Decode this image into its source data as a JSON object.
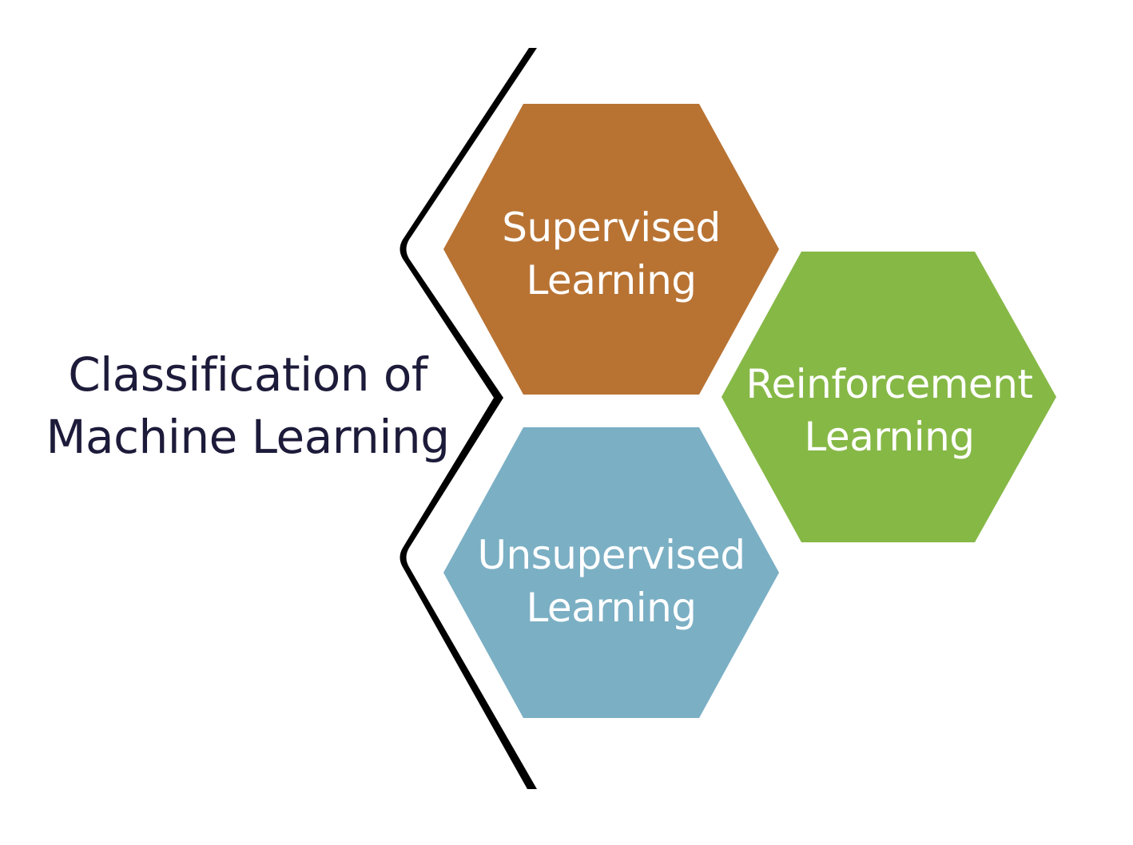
{
  "title": {
    "line1": "Classification of",
    "line2": "Machine Learning"
  },
  "categories": [
    {
      "line1": "Supervised",
      "line2": "Learning",
      "color": "#b87333"
    },
    {
      "line1": "Reinforcement",
      "line2": "Learning",
      "color": "#86b846"
    },
    {
      "line1": "Unsupervised",
      "line2": "Learning",
      "color": "#7bafc4"
    }
  ],
  "bracket_color": "#000000",
  "text_color": "#1d1b3a"
}
